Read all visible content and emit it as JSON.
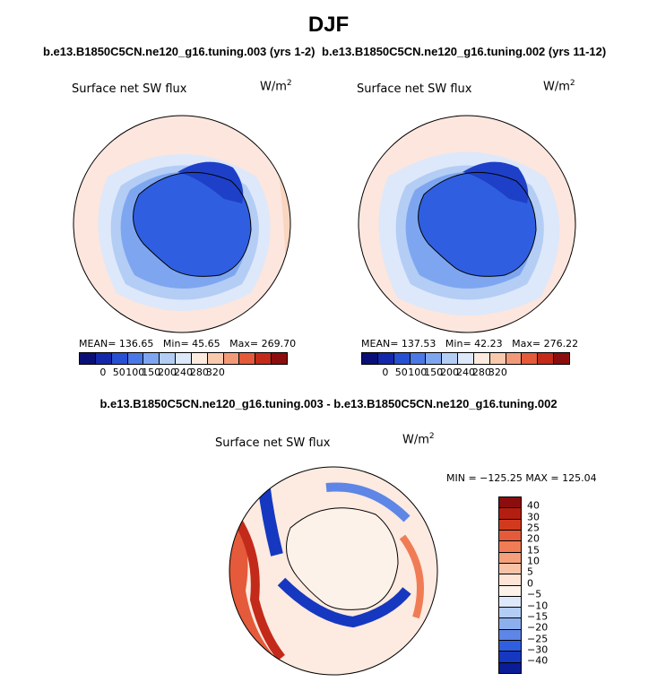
{
  "title": "DJF",
  "chart_data": [
    {
      "type": "heatmap",
      "projection": "south-polar-stereographic",
      "title": "b.e13.B1850C5CN.ne120_g16.tuning.003 (yrs 1-2)",
      "variable": "Surface net SW flux",
      "units": "W/m",
      "units_exp": "2",
      "stats": {
        "mean_label": "MEAN=",
        "mean": "136.65",
        "min_label": "Min=",
        "min": "45.65",
        "max_label": "Max=",
        "max": "269.70"
      },
      "colorbar_ticks": [
        "0",
        "50",
        "100",
        "150",
        "200",
        "240",
        "280",
        "320"
      ],
      "colors": [
        "#0a0f78",
        "#1428aa",
        "#2850d2",
        "#4a78e6",
        "#7ea6f0",
        "#b4cdf5",
        "#dde8fa",
        "#fdebe0",
        "#f8c9ad",
        "#f29a78",
        "#e45a3a",
        "#c32a1a",
        "#8c0d0d"
      ],
      "background": "#fce6dd",
      "ocean": "#fce6dd",
      "land": "#2f5fe0"
    },
    {
      "type": "heatmap",
      "projection": "south-polar-stereographic",
      "title": "b.e13.B1850C5CN.ne120_g16.tuning.002 (yrs 11-12)",
      "variable": "Surface net SW flux",
      "units": "W/m",
      "units_exp": "2",
      "stats": {
        "mean_label": "MEAN=",
        "mean": "137.53",
        "min_label": "Min=",
        "min": "42.23",
        "max_label": "Max=",
        "max": "276.22"
      },
      "colorbar_ticks": [
        "0",
        "50",
        "100",
        "150",
        "200",
        "240",
        "280",
        "320"
      ],
      "colors": [
        "#0a0f78",
        "#1428aa",
        "#2850d2",
        "#4a78e6",
        "#7ea6f0",
        "#b4cdf5",
        "#dde8fa",
        "#fdebe0",
        "#f8c9ad",
        "#f29a78",
        "#e45a3a",
        "#c32a1a",
        "#8c0d0d"
      ],
      "background": "#fce6dd",
      "ocean": "#fce6dd",
      "land": "#2f5fe0"
    },
    {
      "type": "heatmap",
      "projection": "south-polar-stereographic",
      "title": "b.e13.B1850C5CN.ne120_g16.tuning.003 - b.e13.B1850C5CN.ne120_g16.tuning.002",
      "variable": "Surface net SW flux",
      "units": "W/m",
      "units_exp": "2",
      "stats": {
        "text": "MIN = −125.25  MAX = 125.04",
        "min": -125.25,
        "max": 125.04
      },
      "colorbar_ticks": [
        "40",
        "30",
        "25",
        "20",
        "15",
        "10",
        "5",
        "0",
        "−5",
        "−10",
        "−15",
        "−20",
        "−25",
        "−30",
        "−40"
      ],
      "colors": [
        "#8c0d0d",
        "#b41e10",
        "#d23a1e",
        "#e45a3a",
        "#f07c55",
        "#f4a07c",
        "#f8c2a6",
        "#fde4d6",
        "#fdf2ea",
        "#dde8fa",
        "#b4cdf5",
        "#8cb0ee",
        "#5d86e6",
        "#2f5fe0",
        "#1638c0",
        "#0a1c96"
      ],
      "background": "#fdeae0"
    }
  ]
}
